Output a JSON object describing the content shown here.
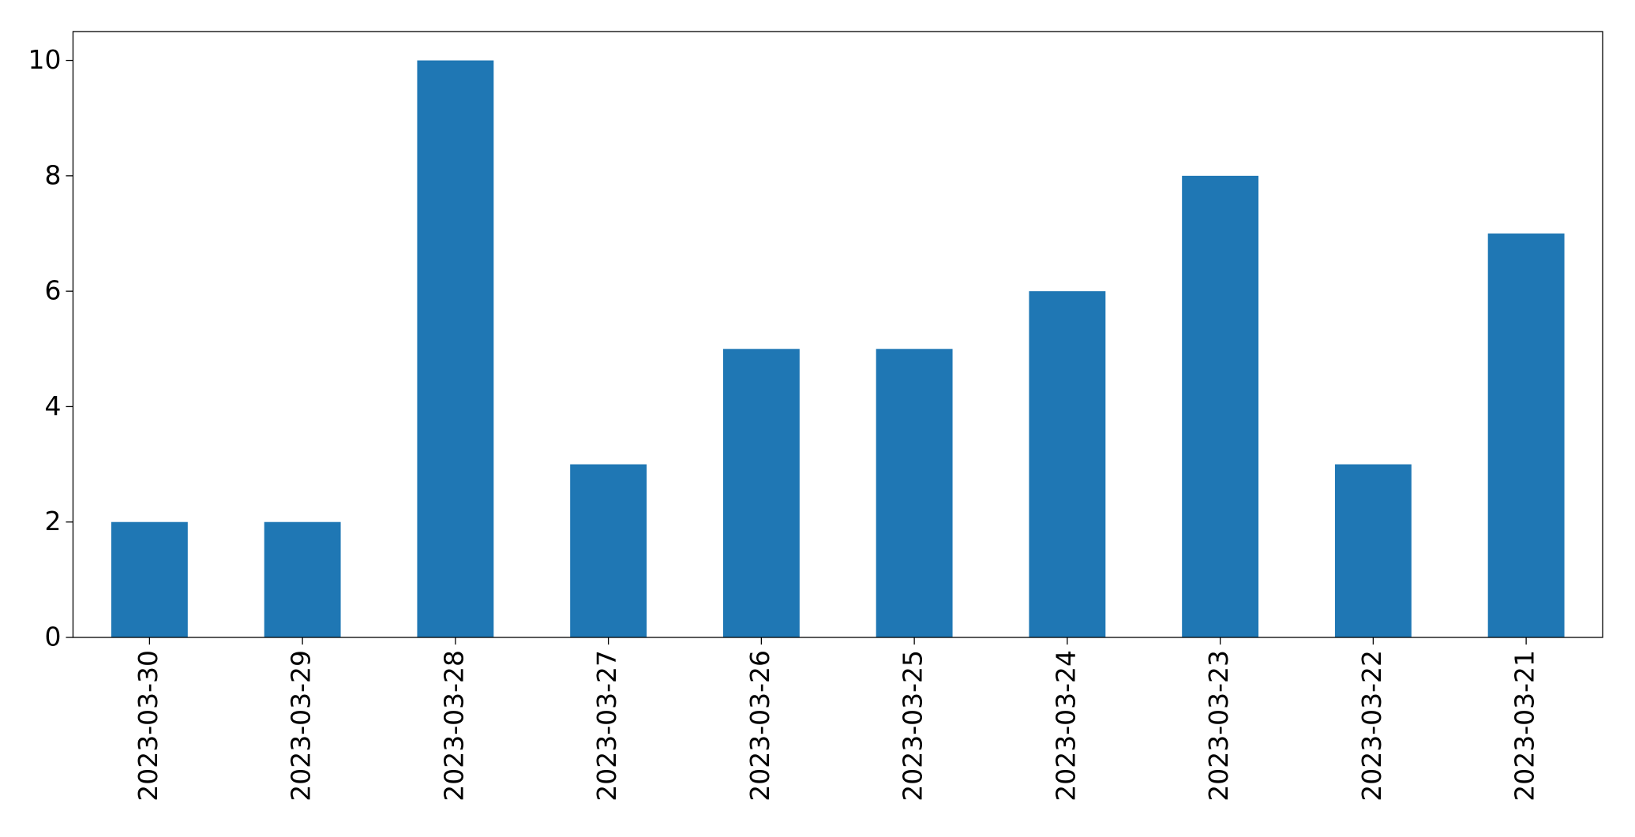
{
  "chart_data": {
    "type": "bar",
    "categories": [
      "2023-03-30",
      "2023-03-29",
      "2023-03-28",
      "2023-03-27",
      "2023-03-26",
      "2023-03-25",
      "2023-03-24",
      "2023-03-23",
      "2023-03-22",
      "2023-03-21"
    ],
    "values": [
      2,
      2,
      10,
      3,
      5,
      5,
      6,
      8,
      3,
      7
    ],
    "color": "#1f77b4",
    "ylim": [
      0,
      10.5
    ],
    "yticks": [
      0,
      2,
      4,
      6,
      8,
      10
    ],
    "grid": false
  }
}
